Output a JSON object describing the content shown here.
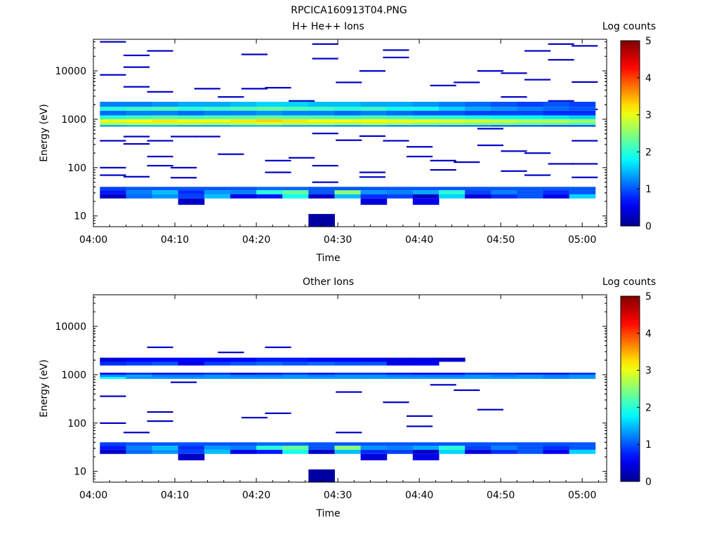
{
  "figure_title": "RPCICA160913T04.PNG",
  "colors": {
    "colormap": [
      "#00008f",
      "#0000ff",
      "#00ffff",
      "#ffff00",
      "#ff0000",
      "#800000"
    ],
    "axis": "#000000",
    "background": "#ffffff"
  },
  "chart_data": [
    {
      "type": "heatmap",
      "title": "H+ He++ Ions",
      "xlabel": "Time",
      "ylabel": "Energy (eV)",
      "colorbar_label": "Log counts",
      "colorbar_ticks": [
        "0",
        "1",
        "2",
        "3",
        "4",
        "5"
      ],
      "clim": [
        0,
        5
      ],
      "x_ticks": [
        "04:00",
        "04:10",
        "04:20",
        "04:30",
        "04:40",
        "04:50",
        "05:00"
      ],
      "y_ticks": [
        "10",
        "100",
        "1000",
        "10000"
      ],
      "y_scale": "log",
      "xlim_minutes": [
        0,
        63
      ],
      "ylim_eV": [
        6,
        45000
      ],
      "bin_width_minutes": 3.2,
      "time_bins_minutes": [
        2.4,
        5.6,
        8.8,
        12.0,
        15.2,
        18.4,
        21.6,
        24.8,
        28.0,
        31.2,
        34.4,
        37.6,
        40.8,
        44.0,
        47.2,
        50.4,
        53.6,
        56.8,
        60.0
      ],
      "band_levels": [
        {
          "e_low": 1800,
          "e_high": 2300,
          "values": [
            1.2,
            1.2,
            1.3,
            1.4,
            1.4,
            1.5,
            1.6,
            1.6,
            1.5,
            1.5,
            1.4,
            1.4,
            1.3,
            1.2,
            1.1,
            1.0,
            0.9,
            1.0,
            0.9
          ]
        },
        {
          "e_low": 1500,
          "e_high": 1800,
          "values": [
            2.0,
            2.1,
            2.2,
            2.0,
            2.1,
            2.2,
            2.3,
            2.2,
            2.1,
            2.0,
            2.1,
            1.9,
            1.9,
            1.6,
            1.4,
            1.3,
            1.2,
            1.1,
            1.0
          ]
        },
        {
          "e_low": 1200,
          "e_high": 1500,
          "values": [
            1.1,
            1.2,
            1.2,
            1.1,
            1.2,
            1.2,
            1.3,
            1.2,
            1.2,
            1.1,
            1.2,
            1.1,
            1.0,
            1.0,
            0.9,
            0.9,
            0.9,
            0.8,
            0.8
          ]
        },
        {
          "e_low": 1000,
          "e_high": 1200,
          "values": [
            2.0,
            2.1,
            2.2,
            2.1,
            2.2,
            2.2,
            2.3,
            2.2,
            2.2,
            2.1,
            2.2,
            2.1,
            2.0,
            2.0,
            1.9,
            1.8,
            1.8,
            1.7,
            1.6
          ]
        },
        {
          "e_low": 870,
          "e_high": 1000,
          "values": [
            3.0,
            3.1,
            3.2,
            3.1,
            3.1,
            3.2,
            3.3,
            3.2,
            3.1,
            3.1,
            3.1,
            3.0,
            3.0,
            2.9,
            2.9,
            2.8,
            2.7,
            2.7,
            2.6
          ]
        },
        {
          "e_low": 760,
          "e_high": 870,
          "values": [
            2.7,
            2.8,
            2.8,
            2.8,
            2.7,
            2.8,
            2.9,
            2.8,
            2.8,
            2.7,
            2.8,
            2.7,
            2.6,
            2.6,
            2.5,
            2.5,
            2.4,
            2.4,
            2.3
          ]
        },
        {
          "e_low": 700,
          "e_high": 760,
          "values": [
            1.4,
            1.5,
            1.5,
            1.4,
            1.4,
            1.5,
            1.5,
            1.4,
            1.4,
            1.3,
            1.4,
            1.3,
            1.3,
            1.2,
            1.2,
            1.1,
            1.1,
            1.0,
            1.0
          ]
        },
        {
          "e_low": 34,
          "e_high": 40,
          "values": [
            0.9,
            1.0,
            1.0,
            1.0,
            1.0,
            1.0,
            1.1,
            1.1,
            1.0,
            1.0,
            1.0,
            1.0,
            1.0,
            1.0,
            1.0,
            1.0,
            1.0,
            1.0,
            1.0
          ]
        },
        {
          "e_low": 28,
          "e_high": 34,
          "values": [
            0.7,
            1.2,
            1.5,
            0.8,
            1.3,
            1.2,
            2.0,
            2.3,
            1.0,
            2.5,
            1.3,
            1.2,
            1.4,
            2.0,
            0.9,
            1.2,
            1.0,
            0.8,
            1.0
          ]
        },
        {
          "e_low": 23,
          "e_high": 28,
          "values": [
            0.3,
            1.1,
            1.3,
            0.9,
            1.5,
            0.5,
            0.7,
            1.9,
            0.3,
            1.5,
            0.8,
            0.9,
            0.3,
            1.6,
            0.4,
            0.8,
            1.0,
            0.5,
            1.6
          ]
        },
        {
          "e_low": 17,
          "e_high": 23,
          "values": [
            null,
            null,
            null,
            0.3,
            null,
            null,
            null,
            null,
            null,
            null,
            0.4,
            null,
            0.5,
            null,
            null,
            null,
            null,
            null,
            null
          ]
        },
        {
          "e_low": 6,
          "e_high": 11,
          "values": [
            null,
            null,
            null,
            null,
            null,
            null,
            null,
            null,
            0.1,
            null,
            null,
            null,
            null,
            null,
            null,
            null,
            null,
            null,
            null
          ]
        }
      ],
      "sparse_lines_eV": [
        [
          40000,
          8300,
          360,
          100,
          70
        ],
        [
          21000,
          12000,
          4700,
          440,
          310,
          65
        ],
        [
          26000,
          3700,
          360,
          170,
          110
        ],
        [
          440,
          100,
          62
        ],
        [
          4300,
          440
        ],
        [
          2900,
          190
        ],
        [
          22000,
          4300
        ],
        [
          4500,
          140,
          80
        ],
        [
          160,
          2400
        ],
        [
          36000,
          18000,
          510,
          110,
          50
        ],
        [
          5800,
          370
        ],
        [
          10000,
          450,
          80,
          64
        ],
        [
          27000,
          19000,
          360
        ],
        [
          270,
          170
        ],
        [
          5000,
          140,
          90
        ],
        [
          5800,
          130
        ],
        [
          10000,
          640,
          290
        ],
        [
          9000,
          2900,
          220,
          85
        ],
        [
          26000,
          6600,
          2100,
          200,
          70
        ],
        [
          36000,
          17000,
          2400,
          120
        ],
        [
          33000,
          5900,
          1600,
          360,
          120,
          63
        ]
      ]
    },
    {
      "type": "heatmap",
      "title": "Other Ions",
      "xlabel": "Time",
      "ylabel": "Energy (eV)",
      "colorbar_label": "Log counts",
      "colorbar_ticks": [
        "0",
        "1",
        "2",
        "3",
        "4",
        "5"
      ],
      "clim": [
        0,
        5
      ],
      "x_ticks": [
        "04:00",
        "04:10",
        "04:20",
        "04:30",
        "04:40",
        "04:50",
        "05:00"
      ],
      "y_ticks": [
        "10",
        "100",
        "1000",
        "10000"
      ],
      "y_scale": "log",
      "xlim_minutes": [
        0,
        63
      ],
      "ylim_eV": [
        6,
        45000
      ],
      "bin_width_minutes": 3.2,
      "time_bins_minutes": [
        2.4,
        5.6,
        8.8,
        12.0,
        15.2,
        18.4,
        21.6,
        24.8,
        28.0,
        31.2,
        34.4,
        37.6,
        40.8,
        44.0,
        47.2,
        50.4,
        53.6,
        56.8,
        60.0
      ],
      "band_levels": [
        {
          "e_low": 1850,
          "e_high": 2250,
          "values": [
            0.4,
            0.6,
            0.6,
            0.6,
            0.6,
            0.6,
            0.7,
            0.7,
            0.6,
            0.6,
            0.5,
            0.4,
            0.4,
            0.3,
            null,
            null,
            null,
            null,
            null
          ]
        },
        {
          "e_low": 1550,
          "e_high": 1850,
          "values": [
            0.8,
            0.9,
            1.0,
            0.5,
            0.9,
            1.0,
            1.1,
            1.0,
            1.1,
            1.0,
            1.0,
            0.5,
            0.6,
            null,
            null,
            null,
            null,
            null,
            null
          ]
        },
        {
          "e_low": 1000,
          "e_high": 1100,
          "values": [
            0.6,
            0.8,
            0.7,
            0.7,
            0.8,
            0.5,
            0.7,
            0.8,
            0.7,
            0.8,
            0.8,
            0.7,
            0.6,
            0.6,
            0.8,
            0.8,
            0.7,
            0.7,
            0.8
          ]
        },
        {
          "e_low": 900,
          "e_high": 1000,
          "values": [
            1.3,
            1.4,
            1.2,
            1.2,
            1.3,
            1.2,
            1.2,
            1.3,
            1.2,
            1.3,
            1.3,
            1.2,
            1.2,
            1.2,
            1.3,
            1.2,
            1.3,
            1.2,
            1.3
          ]
        },
        {
          "e_low": 820,
          "e_high": 900,
          "values": [
            1.8,
            1.3,
            1.3,
            1.3,
            1.3,
            1.3,
            1.3,
            1.3,
            1.3,
            1.3,
            1.3,
            1.3,
            1.3,
            1.3,
            1.3,
            1.3,
            1.3,
            1.2,
            1.3
          ]
        },
        {
          "e_low": 34,
          "e_high": 40,
          "values": [
            0.9,
            1.0,
            1.0,
            1.0,
            1.0,
            1.0,
            1.1,
            1.1,
            1.0,
            1.0,
            1.0,
            1.0,
            1.0,
            1.0,
            1.0,
            1.0,
            1.0,
            1.0,
            1.0
          ]
        },
        {
          "e_low": 28,
          "e_high": 34,
          "values": [
            0.7,
            1.2,
            1.5,
            0.8,
            1.3,
            1.2,
            2.0,
            2.3,
            1.0,
            2.5,
            1.3,
            1.2,
            1.4,
            2.0,
            0.9,
            1.2,
            1.0,
            0.8,
            1.0
          ]
        },
        {
          "e_low": 23,
          "e_high": 28,
          "values": [
            0.3,
            1.1,
            1.3,
            0.9,
            1.5,
            0.5,
            0.7,
            1.9,
            0.3,
            1.5,
            0.8,
            0.9,
            0.3,
            1.6,
            0.4,
            0.8,
            1.0,
            0.5,
            1.6
          ]
        },
        {
          "e_low": 17,
          "e_high": 23,
          "values": [
            null,
            null,
            null,
            0.3,
            null,
            null,
            null,
            null,
            null,
            null,
            0.4,
            null,
            0.5,
            null,
            null,
            null,
            null,
            null,
            null
          ]
        },
        {
          "e_low": 6,
          "e_high": 11,
          "values": [
            null,
            null,
            null,
            null,
            null,
            null,
            null,
            null,
            0.1,
            null,
            null,
            null,
            null,
            null,
            null,
            null,
            null,
            null,
            null
          ]
        }
      ],
      "sparse_lines_eV": [
        [
          360,
          100
        ],
        [
          64
        ],
        [
          3700,
          170,
          110
        ],
        [
          700
        ],
        [],
        [
          2900
        ],
        [
          130
        ],
        [
          3700,
          160
        ],
        [],
        [],
        [
          440,
          64
        ],
        [],
        [
          270
        ],
        [
          140,
          86
        ],
        [
          620
        ],
        [
          480
        ],
        [
          190
        ],
        [],
        [],
        [],
        []
      ]
    }
  ]
}
